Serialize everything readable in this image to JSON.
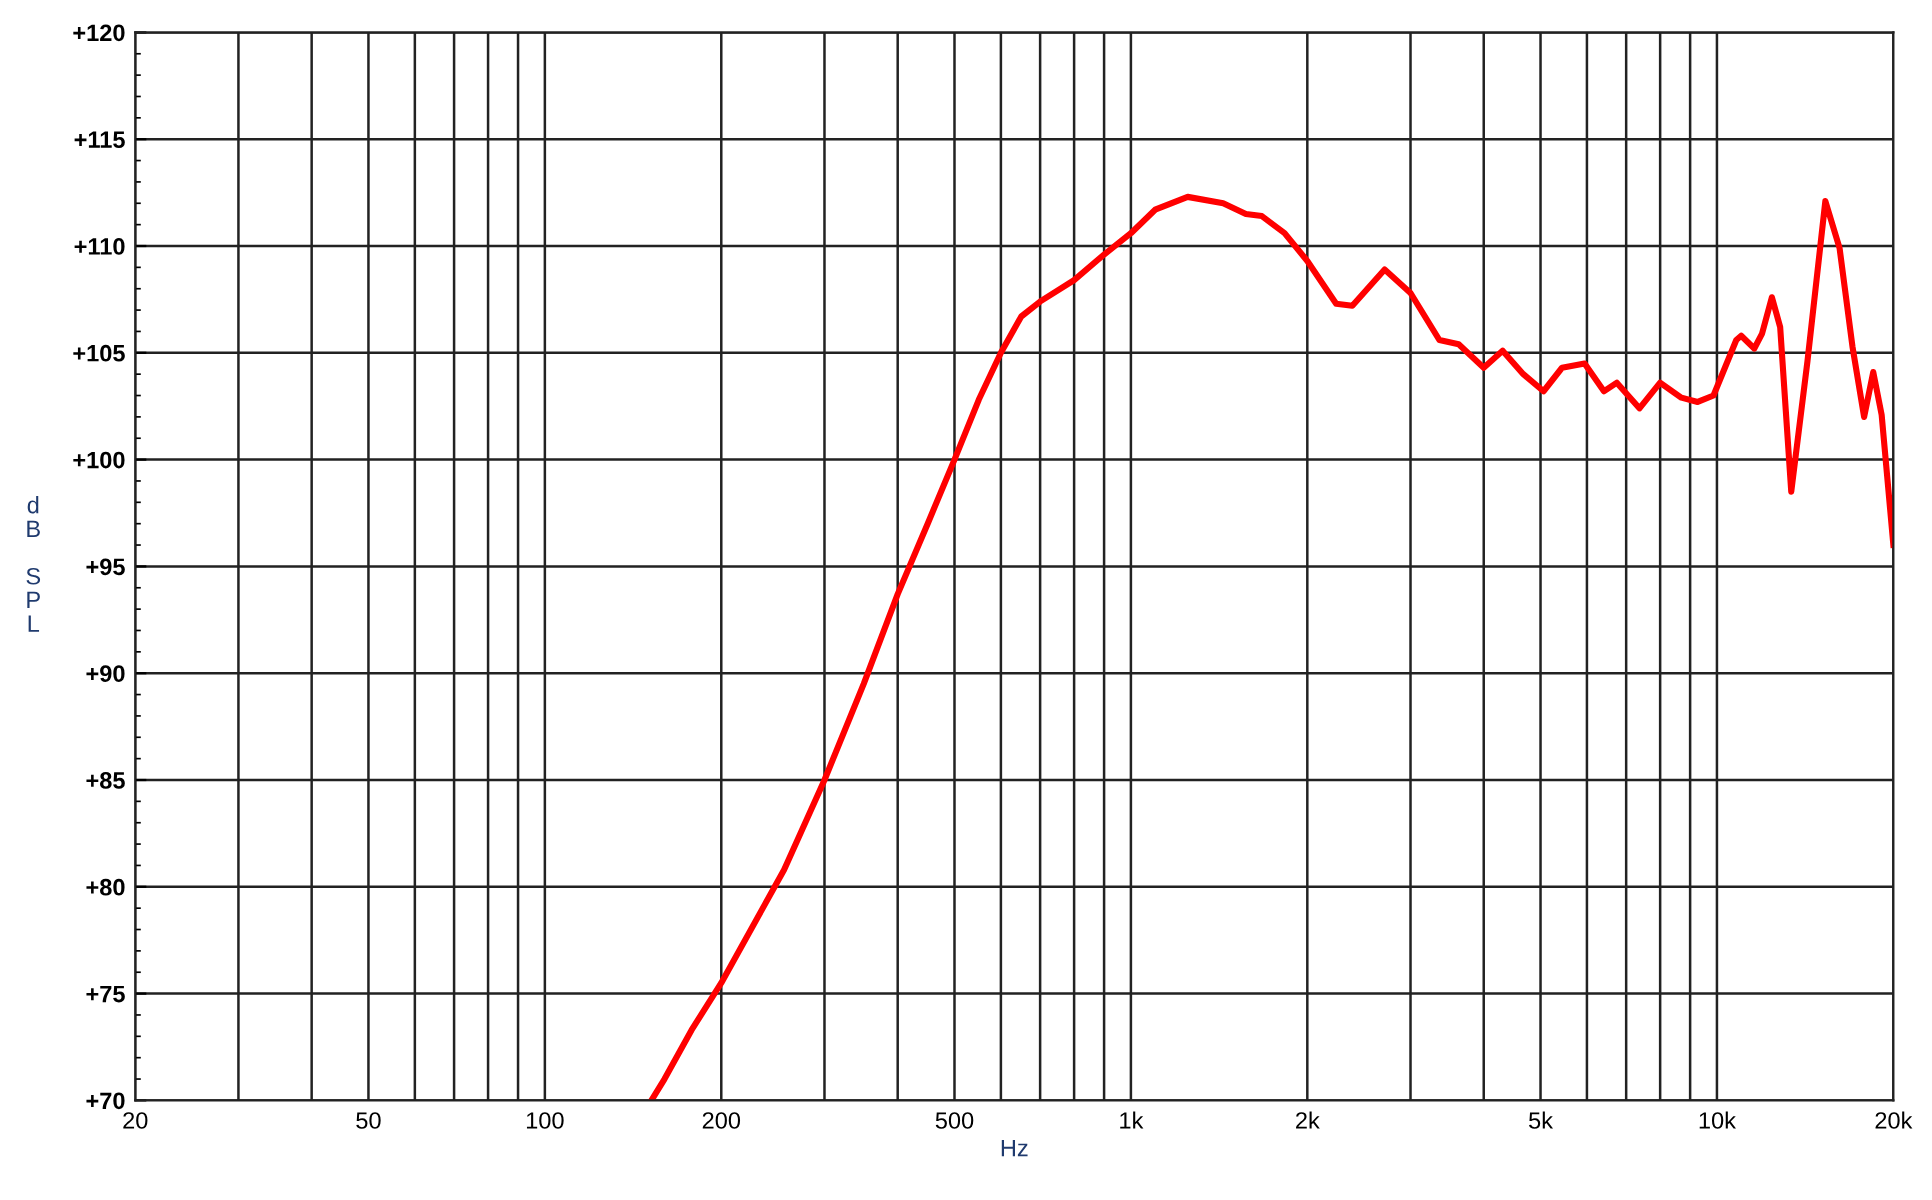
{
  "chart_data": {
    "type": "line",
    "xlabel": "Hz",
    "ylabel": "dB SPL",
    "log": "x",
    "grid": true,
    "marker": "none",
    "line_style": "solid",
    "xlim": [
      20,
      20000
    ],
    "ylim": [
      70,
      120
    ],
    "xticks": [
      20,
      {
        "value": 30,
        "label": null
      },
      {
        "value": 40,
        "label": null
      },
      50,
      {
        "value": 60,
        "label": null
      },
      {
        "value": 70,
        "label": null
      },
      {
        "value": 80,
        "label": null
      },
      {
        "value": 90,
        "label": null
      },
      100,
      200,
      {
        "value": 300,
        "label": null
      },
      {
        "value": 400,
        "label": null
      },
      500,
      {
        "value": 600,
        "label": null
      },
      {
        "value": 700,
        "label": null
      },
      {
        "value": 800,
        "label": null
      },
      {
        "value": 900,
        "label": null
      },
      {
        "value": 1000,
        "label": "1k"
      },
      {
        "value": 2000,
        "label": "2k"
      },
      {
        "value": 3000,
        "label": null
      },
      {
        "value": 4000,
        "label": null
      },
      {
        "value": 5000,
        "label": "5k"
      },
      {
        "value": 6000,
        "label": null
      },
      {
        "value": 7000,
        "label": null
      },
      {
        "value": 8000,
        "label": null
      },
      {
        "value": 9000,
        "label": null
      },
      {
        "value": 10000,
        "label": "10k"
      },
      {
        "value": 20000,
        "label": "20k"
      }
    ],
    "yticks": [
      {
        "value": 70,
        "label": "+70"
      },
      {
        "value": 75,
        "label": "+75"
      },
      {
        "value": 80,
        "label": "+80"
      },
      {
        "value": 85,
        "label": "+85"
      },
      {
        "value": 90,
        "label": "+90"
      },
      {
        "value": 95,
        "label": "+95"
      },
      {
        "value": 100,
        "label": "+100"
      },
      {
        "value": 105,
        "label": "+105"
      },
      {
        "value": 110,
        "label": "+110"
      },
      {
        "value": 115,
        "label": "+115"
      },
      {
        "value": 120,
        "label": "+120"
      }
    ],
    "series": [
      {
        "color": "#ff0000",
        "x": [
          152,
          160,
          178,
          200,
          256,
          300,
          350,
          400,
          450,
          500,
          550,
          600,
          650,
          700,
          800,
          900,
          1000,
          1100,
          1250,
          1437,
          1571,
          1673,
          1829,
          2000,
          2240,
          2387,
          2710,
          3000,
          3360,
          3625,
          4000,
          4308,
          4673,
          5060,
          5440,
          5945,
          6415,
          6747,
          7375,
          8000,
          8696,
          9270,
          9866,
          10790,
          11000,
          11580,
          11940,
          12410,
          12820,
          13390,
          14270,
          15310,
          16190,
          17030,
          17830,
          18480,
          19100,
          20000
        ],
        "values": [
          70,
          71,
          73.3,
          75.5,
          80.8,
          85,
          89.5,
          93.7,
          97,
          100,
          102.8,
          105,
          106.7,
          107.4,
          108.4,
          109.6,
          110.6,
          111.7,
          112.3,
          112,
          111.5,
          111.4,
          110.6,
          109.3,
          107.3,
          107.2,
          108.9,
          107.8,
          105.6,
          105.4,
          104.3,
          105.1,
          104,
          103.2,
          104.3,
          104.5,
          103.2,
          103.6,
          102.4,
          103.6,
          102.9,
          102.7,
          103,
          105.6,
          105.8,
          105.2,
          105.9,
          107.6,
          106.2,
          98.5,
          104.6,
          112.1,
          109.9,
          105.3,
          102,
          104.1,
          102.1,
          96
        ]
      }
    ]
  }
}
